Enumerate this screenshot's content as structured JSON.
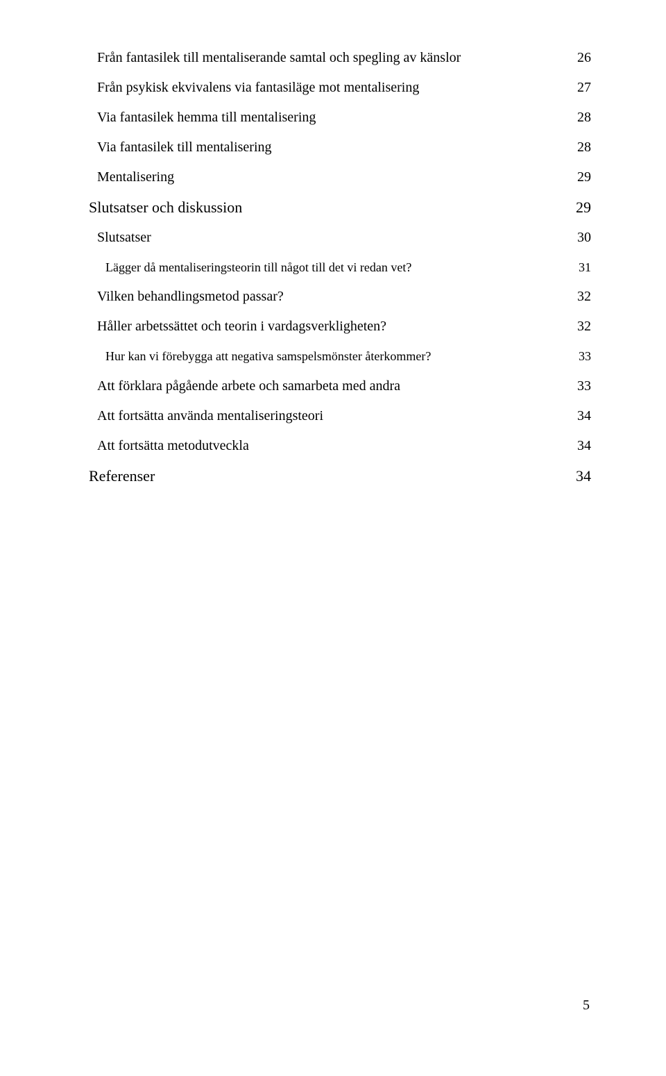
{
  "toc": [
    {
      "level": "a",
      "label": "Från fantasilek till mentaliserande samtal och spegling av känslor",
      "page": "26"
    },
    {
      "level": "a",
      "label": "Från psykisk ekvivalens via fantasiläge mot mentalisering",
      "page": "27"
    },
    {
      "level": "a",
      "label": "Via fantasilek hemma till mentalisering",
      "page": "28"
    },
    {
      "level": "a",
      "label": "Via fantasilek till mentalisering",
      "page": "28"
    },
    {
      "level": "a",
      "label": "Mentalisering",
      "page": "29"
    },
    {
      "level": "b",
      "label": "Slutsatser och diskussion",
      "page": "29"
    },
    {
      "level": "c",
      "label": "Slutsatser",
      "page": "30"
    },
    {
      "level": "d",
      "label": "Lägger då mentaliseringsteorin till något till det vi redan vet?",
      "page": "31"
    },
    {
      "level": "c",
      "label": "Vilken behandlingsmetod passar?",
      "page": "32"
    },
    {
      "level": "c",
      "label": "Håller arbetssättet och teorin i vardagsverkligheten?",
      "page": "32"
    },
    {
      "level": "d",
      "label": "Hur kan vi förebygga att negativa samspelsmönster återkommer?",
      "page": "33"
    },
    {
      "level": "c",
      "label": "Att förklara pågående arbete och samarbeta med andra",
      "page": "33"
    },
    {
      "level": "c",
      "label": "Att fortsätta använda mentaliseringsteori",
      "page": "34"
    },
    {
      "level": "c",
      "label": "Att fortsätta metodutveckla",
      "page": "34"
    },
    {
      "level": "b",
      "label": "Referenser",
      "page": "34"
    }
  ],
  "pageNumber": "5"
}
